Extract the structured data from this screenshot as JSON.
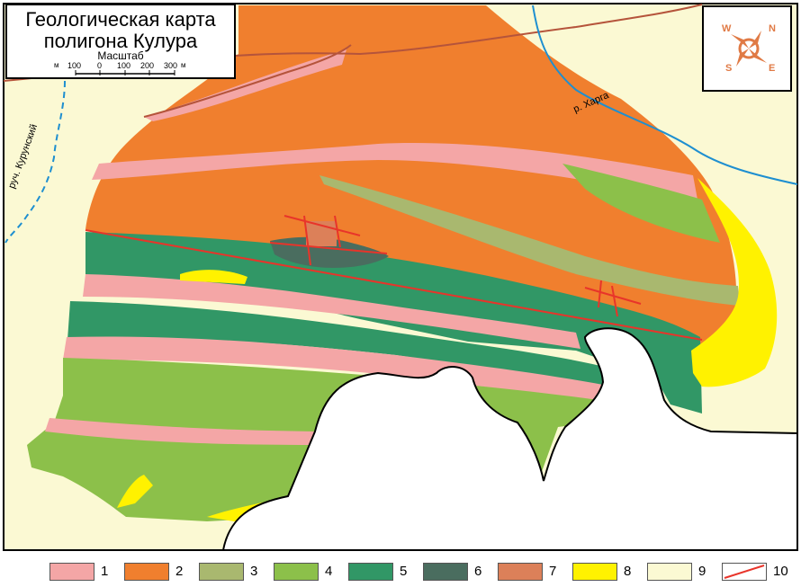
{
  "title": {
    "line1": "Геологическая карта",
    "line2": "полигона Кулура",
    "scale_label": "Масштаб",
    "scale_unit_left": "м",
    "scale_unit_right": "м",
    "scale_ticks": [
      "100",
      "0",
      "100",
      "200",
      "300"
    ]
  },
  "compass": {
    "icon": "compass-icon",
    "letters": {
      "n": "N",
      "s": "S",
      "e": "E",
      "w": "W"
    }
  },
  "labels": {
    "river": "р. Харга",
    "stream": "руч. Курунский"
  },
  "colors": {
    "1": "#f4a6a6",
    "2": "#f07f2e",
    "3": "#a9b86f",
    "4": "#8cc04a",
    "5": "#319766",
    "6": "#4a6d5f",
    "7": "#dc8059",
    "8": "#fff200",
    "9": "#fbf9d3",
    "border": "#e8342a",
    "water": "#1e8fd0",
    "road": "#b5543b"
  },
  "legend": [
    {
      "num": "1",
      "color": "#f4a6a6",
      "kind": "swatch"
    },
    {
      "num": "2",
      "color": "#f07f2e",
      "kind": "swatch"
    },
    {
      "num": "3",
      "color": "#a9b86f",
      "kind": "swatch"
    },
    {
      "num": "4",
      "color": "#8cc04a",
      "kind": "swatch"
    },
    {
      "num": "5",
      "color": "#319766",
      "kind": "swatch"
    },
    {
      "num": "6",
      "color": "#4a6d5f",
      "kind": "swatch"
    },
    {
      "num": "7",
      "color": "#dc8059",
      "kind": "swatch"
    },
    {
      "num": "8",
      "color": "#fff200",
      "kind": "swatch"
    },
    {
      "num": "9",
      "color": "#fbf9d3",
      "kind": "swatch"
    },
    {
      "num": "10",
      "color": "#e8342a",
      "kind": "line"
    }
  ]
}
